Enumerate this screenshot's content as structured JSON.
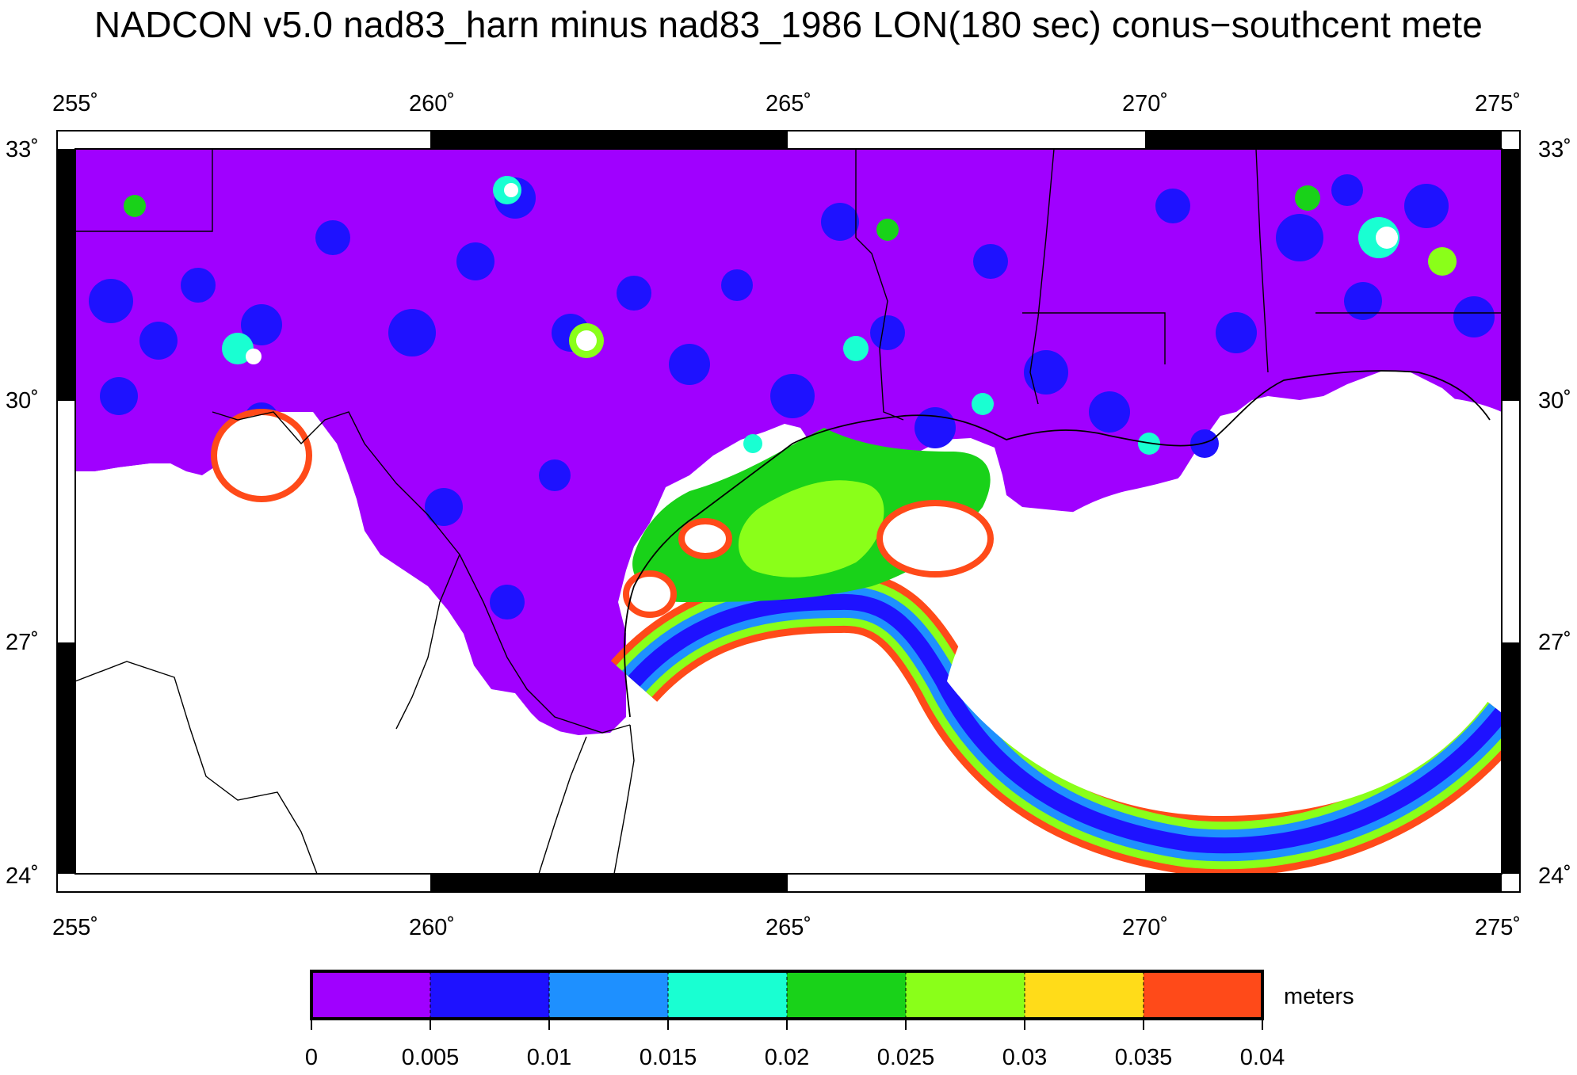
{
  "title": "NADCON v5.0 nad83_harn minus nad83_1986 LON(180 sec) conus−southcent mete",
  "map": {
    "lon_range": [
      255,
      275
    ],
    "lat_range": [
      24,
      33
    ],
    "lon_ticks": [
      "255˚",
      "260˚",
      "265˚",
      "270˚",
      "275˚"
    ],
    "lat_ticks": [
      "33˚",
      "30˚",
      "27˚",
      "24˚"
    ]
  },
  "colorbar": {
    "unit": "meters",
    "ticks": [
      "0",
      "0.005",
      "0.01",
      "0.015",
      "0.02",
      "0.025",
      "0.03",
      "0.035",
      "0.04"
    ],
    "colors": [
      "#a000ff",
      "#1e12ff",
      "#1e90ff",
      "#19ffd2",
      "#19d219",
      "#8aff19",
      "#ffdc19",
      "#ff4a19"
    ]
  }
}
